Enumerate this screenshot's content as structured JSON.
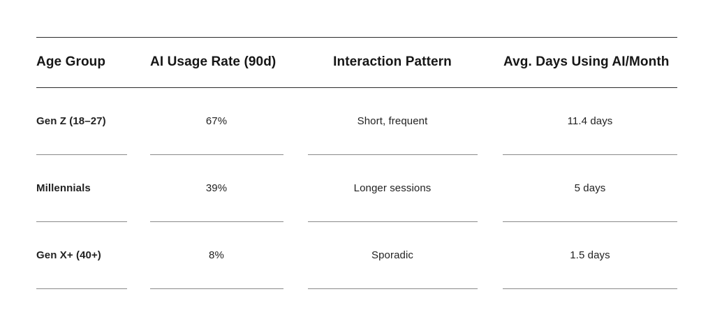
{
  "chart_data": {
    "type": "table",
    "columns": [
      "Age Group",
      "AI Usage Rate (90d)",
      "Interaction Pattern",
      "Avg. Days Using AI/Month"
    ],
    "rows": [
      [
        "Gen Z (18–27)",
        "67%",
        "Short, frequent",
        "11.4 days"
      ],
      [
        "Millennials",
        "39%",
        "Longer sessions",
        "5 days"
      ],
      [
        "Gen X+ (40+)",
        "8%",
        "Sporadic",
        "1.5 days"
      ]
    ]
  }
}
